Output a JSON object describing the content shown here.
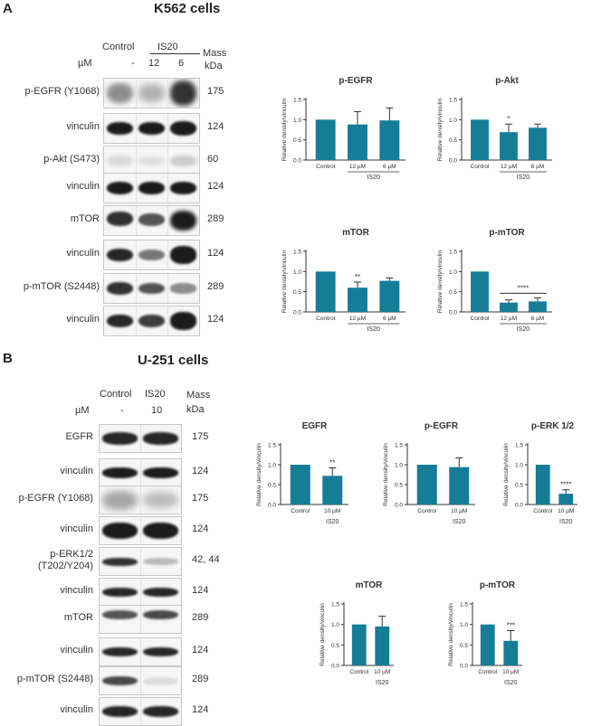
{
  "panel_a": {
    "letter": "A",
    "title": "K562 cells",
    "header": {
      "control": "Control",
      "treatment": "IS20",
      "mass_title": "Mass",
      "mass_unit": "kDa",
      "unit": "µM",
      "doses": [
        "-",
        "12",
        "6"
      ]
    },
    "blots": [
      {
        "label": "p-EGFR (Y1068)",
        "mass": "175"
      },
      {
        "label": "vinculin",
        "mass": "124"
      },
      {
        "label": "p-Akt (S473)",
        "mass": "60"
      },
      {
        "label": "vinculin",
        "mass": "124"
      },
      {
        "label": "mTOR",
        "mass": "289"
      },
      {
        "label": "vinculin",
        "mass": "124"
      },
      {
        "label": "p-mTOR (S2448)",
        "mass": "289"
      },
      {
        "label": "vinculin",
        "mass": "124"
      }
    ]
  },
  "panel_b": {
    "letter": "B",
    "title": "U-251 cells",
    "header": {
      "control": "Control",
      "treatment": "IS20",
      "mass_title": "Mass",
      "mass_unit": "kDa",
      "unit": "µM",
      "doses": [
        "-",
        "10"
      ]
    },
    "blots": [
      {
        "label": "EGFR",
        "mass": "175"
      },
      {
        "label": "vinculin",
        "mass": "124"
      },
      {
        "label": "p-EGFR (Y1068)",
        "mass": "175"
      },
      {
        "label": "vinculin",
        "mass": "124"
      },
      {
        "label": "p-ERK1/2",
        "label2": "(T202/Y204)",
        "mass": "42, 44"
      },
      {
        "label": "vinculin",
        "mass": "124"
      },
      {
        "label": "mTOR",
        "mass": "289"
      },
      {
        "label": "vinculin",
        "mass": "124"
      },
      {
        "label": "p-mTOR (S2448)",
        "mass": "289"
      },
      {
        "label": "vinculin",
        "mass": "124"
      }
    ]
  },
  "colors": {
    "bar": "#167d97",
    "axis": "#333333",
    "band": "#111111"
  },
  "chart_data": [
    {
      "type": "bar",
      "title": "p-EGFR",
      "ylabel": "Relative density/vinculin",
      "ylim": [
        0,
        1.5
      ],
      "yticks": [
        0.0,
        0.5,
        1.0,
        1.5
      ],
      "categories": [
        "Control",
        "12 µM",
        "6 µM"
      ],
      "values": [
        1.0,
        0.88,
        0.98
      ],
      "errors": [
        0,
        0.32,
        0.31
      ],
      "significance": [
        "",
        "",
        ""
      ],
      "group_label": "IS20",
      "group_span": [
        1,
        2
      ]
    },
    {
      "type": "bar",
      "title": "p-Akt",
      "ylabel": "Relative density/vinculin",
      "ylim": [
        0,
        1.5
      ],
      "yticks": [
        0.0,
        0.5,
        1.0,
        1.5
      ],
      "categories": [
        "Control",
        "12 µM",
        "6 µM"
      ],
      "values": [
        1.0,
        0.69,
        0.8
      ],
      "errors": [
        0,
        0.2,
        0.09
      ],
      "significance": [
        "",
        "*",
        ""
      ],
      "group_label": "IS20",
      "group_span": [
        1,
        2
      ]
    },
    {
      "type": "bar",
      "title": "mTOR",
      "ylabel": "Relative density/vinculin",
      "ylim": [
        0,
        1.5
      ],
      "yticks": [
        0.0,
        0.5,
        1.0,
        1.5
      ],
      "categories": [
        "Control",
        "12 µM",
        "6 µM"
      ],
      "values": [
        1.0,
        0.6,
        0.77
      ],
      "errors": [
        0,
        0.14,
        0.07
      ],
      "significance": [
        "",
        "**",
        ""
      ],
      "group_label": "IS20",
      "group_span": [
        1,
        2
      ]
    },
    {
      "type": "bar",
      "title": "p-mTOR",
      "ylabel": "Relative density/vinculin",
      "ylim": [
        0,
        1.5
      ],
      "yticks": [
        0.0,
        0.5,
        1.0,
        1.5
      ],
      "categories": [
        "Control",
        "12 µM",
        "6 µM"
      ],
      "values": [
        1.0,
        0.23,
        0.26
      ],
      "errors": [
        0,
        0.07,
        0.09
      ],
      "significance": [
        "",
        "",
        ""
      ],
      "bracket": {
        "from": 1,
        "to": 2,
        "label": "****"
      },
      "group_label": "IS20",
      "group_span": [
        1,
        2
      ]
    },
    {
      "type": "bar",
      "title": "EGFR",
      "ylabel": "Relative density/vinculin",
      "ylim": [
        0,
        1.5
      ],
      "yticks": [
        0.0,
        0.5,
        1.0,
        1.5
      ],
      "categories": [
        "Control",
        "10 µM"
      ],
      "values": [
        1.0,
        0.72
      ],
      "errors": [
        0,
        0.2
      ],
      "significance": [
        "",
        "**"
      ],
      "group_label": "IS20",
      "group_span": [
        1,
        1
      ]
    },
    {
      "type": "bar",
      "title": "p-EGFR",
      "ylabel": "Relative density/vinculin",
      "ylim": [
        0,
        1.5
      ],
      "yticks": [
        0.0,
        0.5,
        1.0,
        1.5
      ],
      "categories": [
        "Control",
        "10 µM"
      ],
      "values": [
        1.0,
        0.94
      ],
      "errors": [
        0,
        0.23
      ],
      "significance": [
        "",
        ""
      ],
      "group_label": "IS20",
      "group_span": [
        1,
        1
      ]
    },
    {
      "type": "bar",
      "title": "p-ERK 1/2",
      "ylabel": "Relative density/vinculin",
      "ylim": [
        0,
        1.5
      ],
      "yticks": [
        0.0,
        0.5,
        1.0,
        1.5
      ],
      "categories": [
        "Control",
        "10 µM"
      ],
      "values": [
        1.0,
        0.27
      ],
      "errors": [
        0,
        0.1
      ],
      "significance": [
        "",
        "****"
      ],
      "group_label": "IS20",
      "group_span": [
        1,
        1
      ]
    },
    {
      "type": "bar",
      "title": "mTOR",
      "ylabel": "Relative density/vinculin",
      "ylim": [
        0,
        1.5
      ],
      "yticks": [
        0.0,
        0.5,
        1.0,
        1.5
      ],
      "categories": [
        "Control",
        "10 µM"
      ],
      "values": [
        1.0,
        0.95
      ],
      "errors": [
        0,
        0.25
      ],
      "significance": [
        "",
        ""
      ],
      "group_label": "IS20",
      "group_span": [
        1,
        1
      ]
    },
    {
      "type": "bar",
      "title": "p-mTOR",
      "ylabel": "Relative density/vinculin",
      "ylim": [
        0,
        1.5
      ],
      "yticks": [
        0.0,
        0.5,
        1.0,
        1.5
      ],
      "categories": [
        "Control",
        "10 µM"
      ],
      "values": [
        1.0,
        0.6
      ],
      "errors": [
        0,
        0.25
      ],
      "significance": [
        "",
        "***"
      ],
      "group_label": "IS20",
      "group_span": [
        1,
        1
      ]
    }
  ]
}
